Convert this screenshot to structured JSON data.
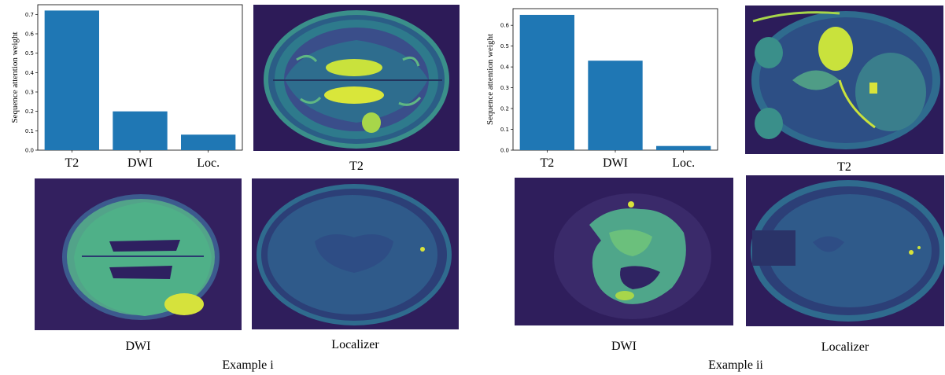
{
  "chart_data": [
    {
      "type": "bar",
      "categories": [
        "T2",
        "DWI",
        "Loc."
      ],
      "values": [
        0.72,
        0.2,
        0.08
      ],
      "ylabel": "Sequence attention weight",
      "ylim": [
        0,
        0.75
      ],
      "yticks": [
        "0.0",
        "0.1",
        "0.2",
        "0.3",
        "0.4",
        "0.5",
        "0.6",
        "0.7"
      ],
      "bar_color": "#1f77b4",
      "grid": false
    },
    {
      "type": "bar",
      "categories": [
        "T2",
        "DWI",
        "Loc."
      ],
      "values": [
        0.65,
        0.43,
        0.02
      ],
      "ylabel": "Sequence attention weight",
      "ylim": [
        0,
        0.68
      ],
      "yticks": [
        "0.0",
        "0.1",
        "0.2",
        "0.3",
        "0.4",
        "0.5",
        "0.6"
      ],
      "bar_color": "#1f77b4",
      "grid": false
    }
  ],
  "example_i": {
    "t2_label": "T2",
    "dwi_label": "DWI",
    "localizer_label": "Localizer",
    "title": "Example i"
  },
  "example_ii": {
    "t2_label": "T2",
    "dwi_label": "DWI",
    "localizer_label": "Localizer",
    "title": "Example ii"
  },
  "colors": {
    "scan_background": "#2a1e57",
    "scan_mid": "#2f6b8e",
    "scan_bright": "#d8e33a"
  }
}
